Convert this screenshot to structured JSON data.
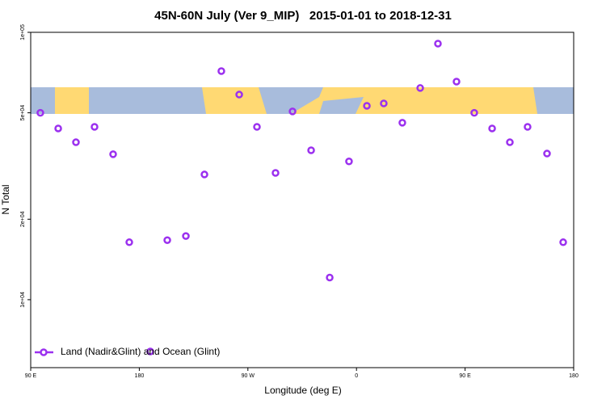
{
  "chart_data": {
    "type": "scatter",
    "title": "45N-60N July (Ver 9_MIP)   2015-01-01 to 2018-12-31",
    "xlabel": "Longitude (deg E)",
    "ylabel": "N Total",
    "x": [
      98,
      112.8,
      127.5,
      142.9,
      158.3,
      171.7,
      189.1,
      203.2,
      218.6,
      234,
      248,
      262.8,
      277.5,
      292.9,
      307,
      322.4,
      337.8,
      353.8,
      368.6,
      382.6,
      398,
      412.8,
      427.5,
      442.9,
      457.6,
      472.4,
      487.1,
      501.8,
      517.9,
      531.3
    ],
    "series": [
      {
        "name": "Land (Nadir&Glint) and Ocean (Glint)",
        "color": "#9b30ef",
        "values": [
          50000,
          43700,
          38800,
          44300,
          35000,
          16400,
          6400,
          16700,
          17300,
          29400,
          71600,
          58500,
          44300,
          29800,
          50600,
          36200,
          12100,
          32900,
          53100,
          54200,
          45900,
          61900,
          90700,
          65400,
          50000,
          43700,
          38800,
          44300,
          35200,
          16400
        ]
      }
    ],
    "xlim": [
      90,
      540
    ],
    "xticks": [
      {
        "value": 90,
        "label": "90 E"
      },
      180,
      {
        "value": 270,
        "label": "90 W"
      },
      {
        "value": 360,
        "label": "0"
      },
      {
        "value": 450,
        "label": "90 E"
      },
      {
        "value": 540,
        "label": "180"
      }
    ],
    "ylim": [
      5570,
      100000
    ],
    "log_y": true,
    "yticks": [
      {
        "value": 10000,
        "label": "1e+04"
      },
      {
        "value": 20000,
        "label": "2e+04"
      },
      {
        "value": 50000,
        "label": "5e+04"
      },
      {
        "value": 100000,
        "label": "1e+05"
      }
    ],
    "legend": "bottom-left"
  }
}
